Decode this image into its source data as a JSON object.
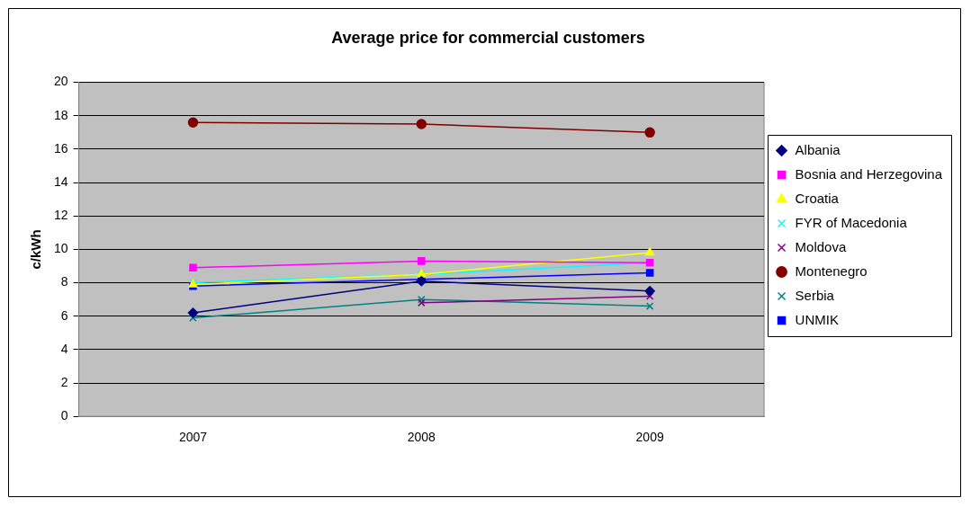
{
  "chart_data": {
    "type": "line",
    "title": "Average price for commercial customers",
    "ylabel": "c/kWh",
    "categories": [
      "2007",
      "2008",
      "2009"
    ],
    "series": [
      {
        "name": "Albania",
        "color": "#000080",
        "marker": "diamond",
        "values": [
          6.2,
          8.1,
          7.5
        ]
      },
      {
        "name": "Bosnia and Herzegovina",
        "color": "#ff00ff",
        "marker": "square",
        "values": [
          8.9,
          9.3,
          9.2
        ]
      },
      {
        "name": "Croatia",
        "color": "#ffff00",
        "marker": "triangle",
        "values": [
          7.9,
          8.5,
          9.8
        ]
      },
      {
        "name": "FYR of Macedonia",
        "color": "#00ffff",
        "marker": "cross",
        "values": [
          8.0,
          8.5,
          9.2
        ]
      },
      {
        "name": "Moldova",
        "color": "#800080",
        "marker": "cross",
        "values": [
          null,
          6.8,
          7.2
        ]
      },
      {
        "name": "Montenegro",
        "color": "#800000",
        "marker": "circle",
        "values": [
          17.6,
          17.5,
          17.0
        ]
      },
      {
        "name": "Serbia",
        "color": "#008080",
        "marker": "cross",
        "values": [
          5.9,
          7.0,
          6.6
        ]
      },
      {
        "name": "UNMIK",
        "color": "#0000ff",
        "marker": "square",
        "values": [
          7.8,
          8.2,
          8.6
        ]
      }
    ],
    "ylim": [
      0,
      20
    ],
    "yticks": [
      0,
      2,
      4,
      6,
      8,
      10,
      12,
      14,
      16,
      18,
      20
    ],
    "grid": "y",
    "legend": "right"
  }
}
